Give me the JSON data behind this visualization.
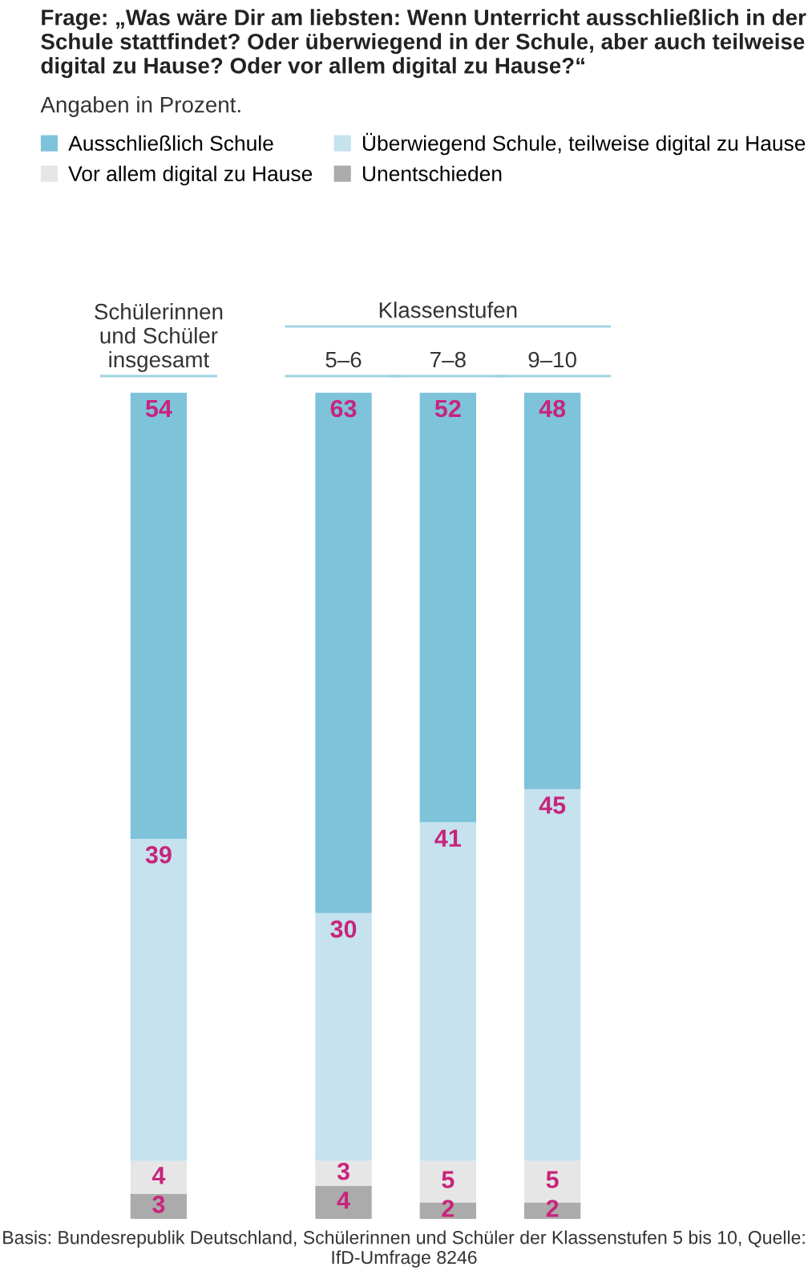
{
  "chart_data": {
    "type": "bar",
    "stacked": true,
    "data_labels": true,
    "legend": "top",
    "title": "Frage: „Was wäre Dir am liebsten: Wenn Unterricht ausschließlich in der Schule stattfindet? Oder überwiegend in der Schule, aber auch teilweise digital zu Hause? Oder vor allem digital zu Hause?“",
    "subtitle": "Angaben in Prozent.",
    "categories": [
      "Schülerinnen\nund Schüler\ninsgesamt",
      "5–6",
      "7–8",
      "9–10"
    ],
    "series": [
      {
        "name": "Unentschieden",
        "color": "#ababab",
        "values": [
          3,
          4,
          2,
          2
        ]
      },
      {
        "name": "Vor allem digital zu Hause",
        "color": "#e6e6e6",
        "values": [
          4,
          3,
          5,
          5
        ]
      },
      {
        "name": "Überwiegend Schule, teilweise digital zu Hause",
        "color": "#c5e2ee",
        "values": [
          39,
          30,
          41,
          45
        ]
      },
      {
        "name": "Ausschließlich Schule",
        "color": "#7ec3da",
        "values": [
          54,
          63,
          52,
          48
        ]
      }
    ],
    "annotations": [
      "Klassenstufen",
      "Basis: Bundesrepublik Deutschland, Schülerinnen und Schüler der Klassenstufen 5 bis 10, Quelle: IfD-Umfrage 8246"
    ]
  }
}
